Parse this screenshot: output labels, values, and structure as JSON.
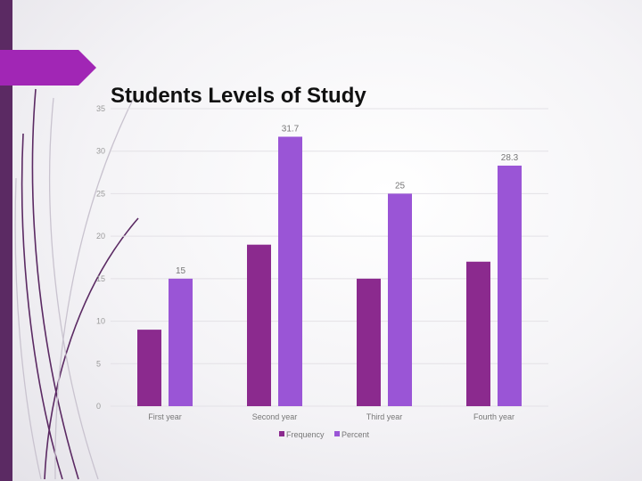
{
  "slide": {
    "title": "Students Levels of Study"
  },
  "colors": {
    "sidebar": "#5b2a63",
    "accent_tab": "#a126b5",
    "frequency": "#8b2a8e",
    "percent": "#9a55d6",
    "grid": "#e3e1e6",
    "tick_text": "#9a9a9a",
    "label_text": "#777777"
  },
  "chart_data": {
    "type": "bar",
    "categories": [
      "First year",
      "Second year",
      "Third year",
      "Fourth year"
    ],
    "series": [
      {
        "name": "Frequency",
        "values": [
          9,
          19,
          15,
          17
        ]
      },
      {
        "name": "Percent",
        "values": [
          15,
          31.7,
          25,
          28.3
        ]
      }
    ],
    "data_labels": [
      {
        "series": 1,
        "index": 0,
        "text": "15"
      },
      {
        "series": 1,
        "index": 1,
        "text": "31.7"
      },
      {
        "series": 1,
        "index": 2,
        "text": "25"
      },
      {
        "series": 1,
        "index": 3,
        "text": "28.3"
      }
    ],
    "yticks": [
      0,
      5,
      10,
      15,
      20,
      25,
      30,
      35
    ],
    "ylim": [
      0,
      35
    ],
    "grid": true,
    "legend_position": "bottom",
    "title": "Students Levels of Study",
    "xlabel": "",
    "ylabel": ""
  }
}
